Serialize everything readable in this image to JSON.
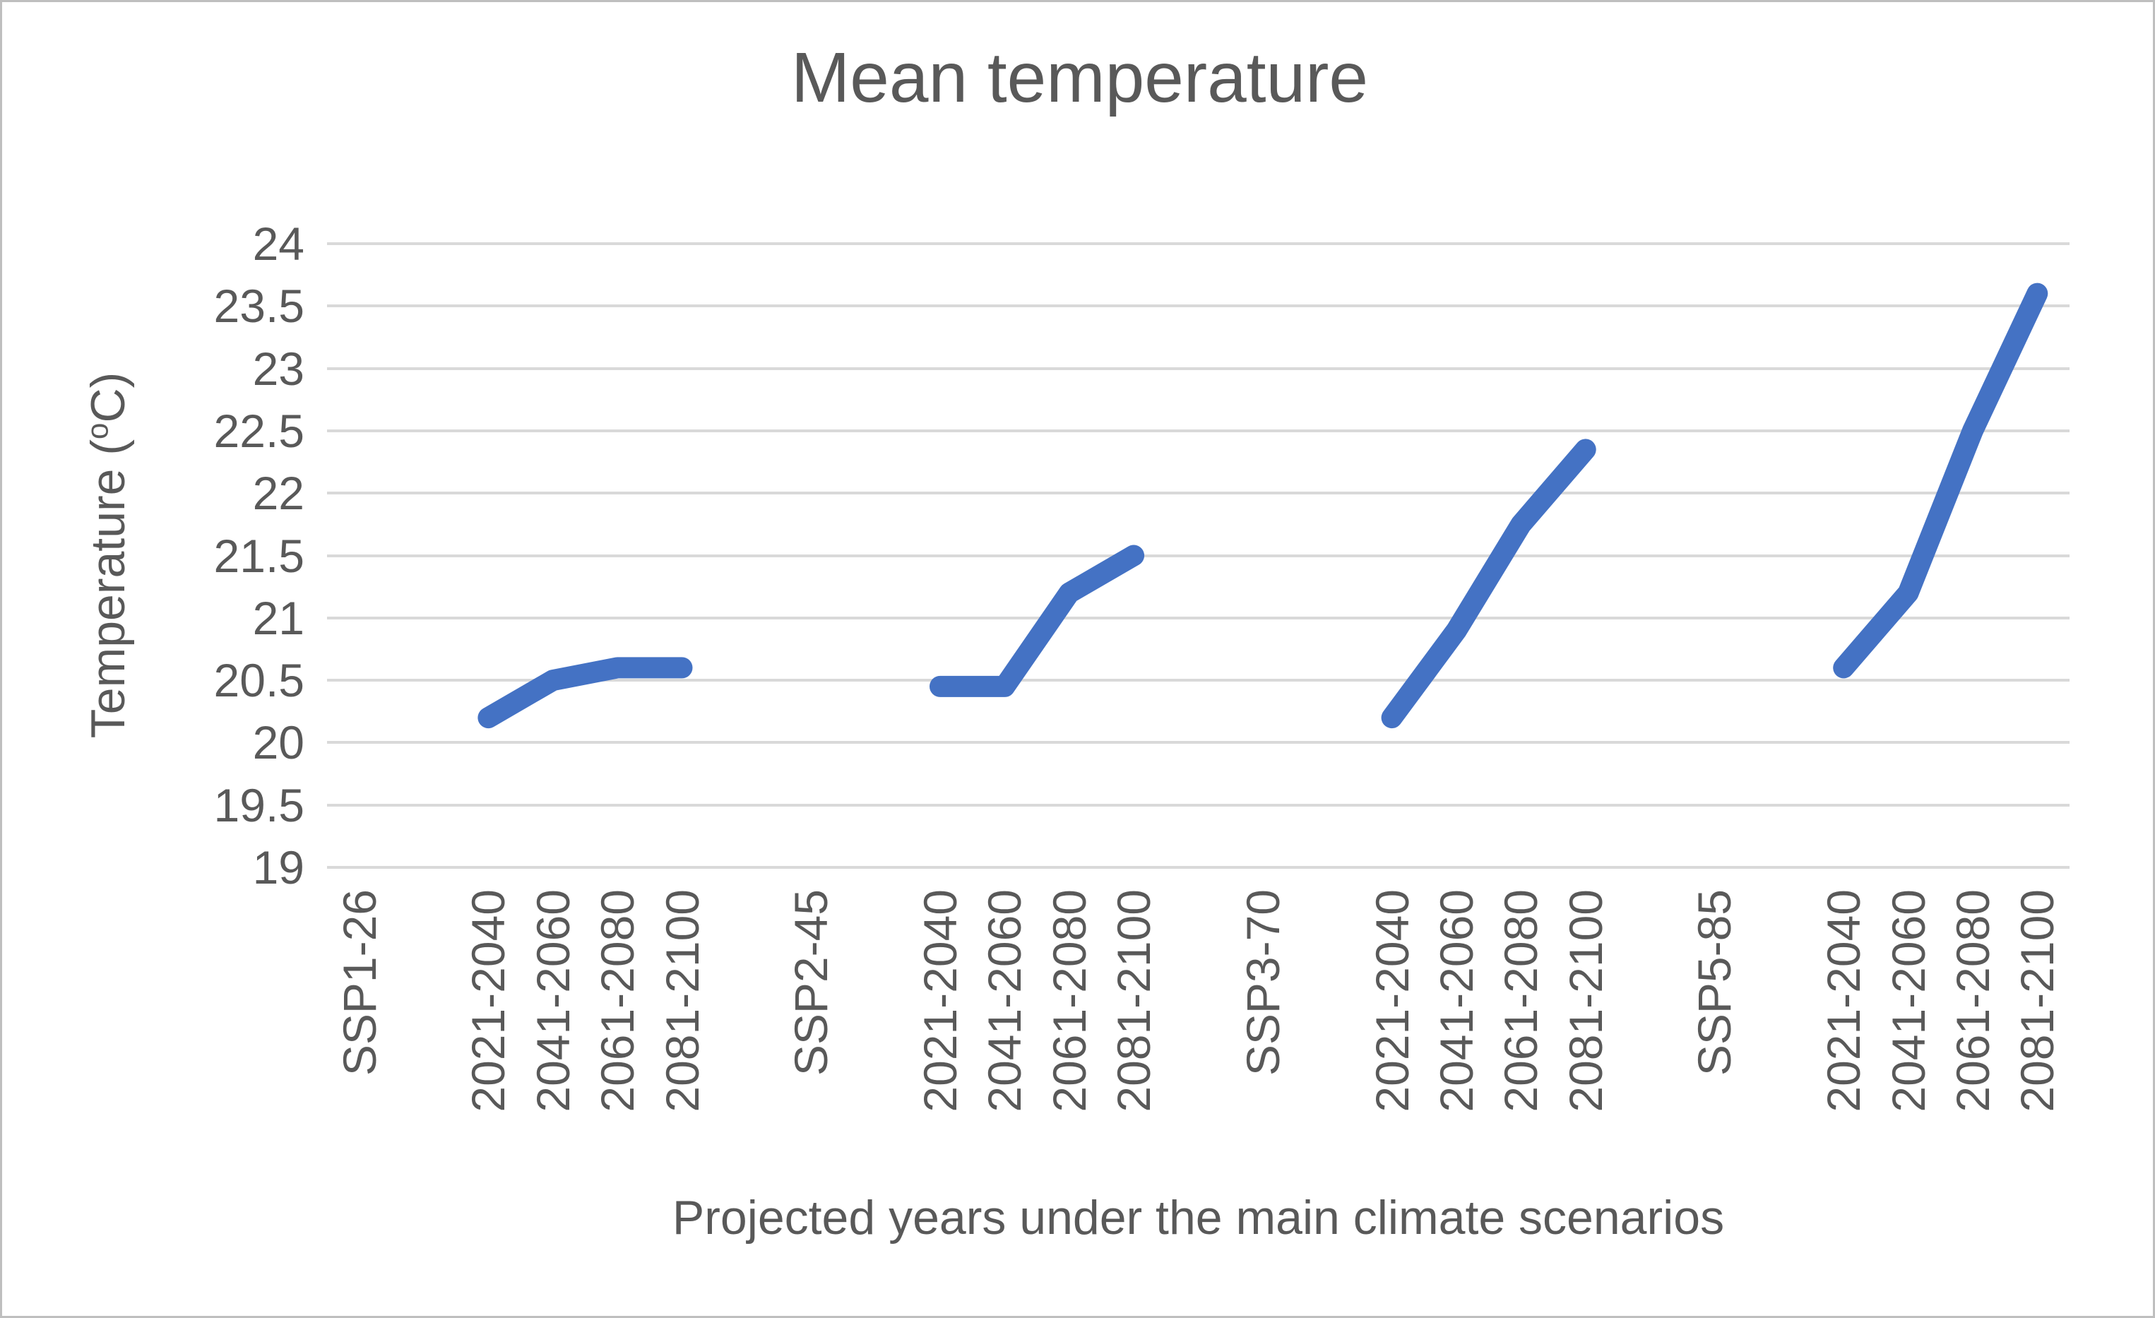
{
  "title": "Mean temperature",
  "colors": {
    "line": "#4472C4",
    "grid": "#D9D9D9",
    "text": "#595959",
    "border": "#BFBFBF",
    "background": "#FFFFFF"
  },
  "axes": {
    "y": {
      "label_prefix": "Temperature (",
      "label_sup": "o",
      "label_suffix": "C)",
      "min": 19,
      "max": 24,
      "step": 0.5,
      "tick_labels": [
        "24",
        "23.5",
        "23",
        "22.5",
        "22",
        "21.5",
        "21",
        "20.5",
        "20",
        "19.5",
        "19"
      ]
    },
    "x": {
      "title": "Projected years under the main climate scenarios"
    }
  },
  "chart_data": {
    "type": "line",
    "title": "Mean temperature",
    "xlabel": "Projected years under the main climate scenarios",
    "ylabel": "Temperature (°C)",
    "ylim": [
      19,
      24
    ],
    "ytick_step": 0.5,
    "grid": true,
    "legend": false,
    "line_color": "#4472C4",
    "categories": [
      "SSP1-26",
      "",
      "2021-2040",
      "2041-2060",
      "2061-2080",
      "2081-2100",
      "",
      "SSP2-45",
      "",
      "2021-2040",
      "2041-2060",
      "2061-2080",
      "2081-2100",
      "",
      "SSP3-70",
      "",
      "2021-2040",
      "2041-2060",
      "2061-2080",
      "2081-2100",
      "",
      "SSP5-85",
      "",
      "2021-2040",
      "2041-2060",
      "2061-2080",
      "2081-2100"
    ],
    "series": [
      {
        "name": "Mean temperature",
        "values": [
          null,
          null,
          20.2,
          20.5,
          20.6,
          20.6,
          null,
          null,
          null,
          20.45,
          20.45,
          21.2,
          21.5,
          null,
          null,
          null,
          20.2,
          20.9,
          21.75,
          22.35,
          null,
          null,
          null,
          20.6,
          21.2,
          22.5,
          23.6
        ]
      }
    ]
  }
}
